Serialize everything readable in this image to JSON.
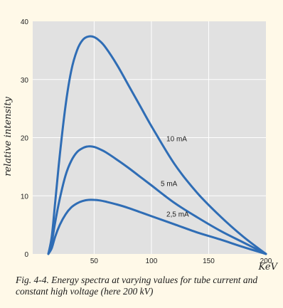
{
  "caption": "Fig. 4-4. Energy spectra at varying values for tube current and constant high voltage (here 200 kV)",
  "chart_data": {
    "type": "line",
    "title": "",
    "xlabel": "KeV",
    "ylabel": "relative intensity",
    "xlim": [
      0,
      200
    ],
    "ylim": [
      0,
      40
    ],
    "xticks": [
      50,
      100,
      150,
      200
    ],
    "yticks": [
      0,
      10,
      20,
      30,
      40
    ],
    "grid": true,
    "colors": {
      "background": "#e1e1e1",
      "grid": "#ffffff",
      "line": "#2f6db5"
    },
    "series": [
      {
        "name": "10 mA",
        "x": [
          10,
          13,
          16,
          20,
          25,
          30,
          35,
          40,
          45,
          50,
          55,
          60,
          70,
          80,
          90,
          100,
          120,
          140,
          160,
          180,
          200
        ],
        "y": [
          0,
          3,
          9,
          17,
          25.5,
          31.5,
          35,
          36.8,
          37.4,
          37.3,
          36.6,
          35.5,
          32.5,
          29,
          25.5,
          22,
          15.5,
          10.5,
          6.5,
          3,
          0
        ]
      },
      {
        "name": "5 mA",
        "x": [
          10,
          13,
          16,
          20,
          25,
          30,
          35,
          40,
          45,
          50,
          55,
          60,
          70,
          80,
          90,
          100,
          120,
          140,
          160,
          180,
          200
        ],
        "y": [
          0,
          2,
          5.5,
          9.5,
          13.5,
          16,
          17.5,
          18.2,
          18.5,
          18.4,
          18,
          17.5,
          16.2,
          14.8,
          13.3,
          11.8,
          8.8,
          6.3,
          4,
          2,
          0
        ]
      },
      {
        "name": "2,5 mA",
        "x": [
          10,
          13,
          16,
          20,
          25,
          30,
          35,
          40,
          45,
          50,
          55,
          60,
          70,
          80,
          90,
          100,
          120,
          140,
          160,
          180,
          200
        ],
        "y": [
          0,
          1,
          3,
          5,
          6.8,
          8,
          8.7,
          9.1,
          9.3,
          9.3,
          9.2,
          9,
          8.5,
          7.9,
          7.2,
          6.5,
          5.1,
          3.7,
          2.5,
          1.2,
          0
        ]
      }
    ]
  }
}
